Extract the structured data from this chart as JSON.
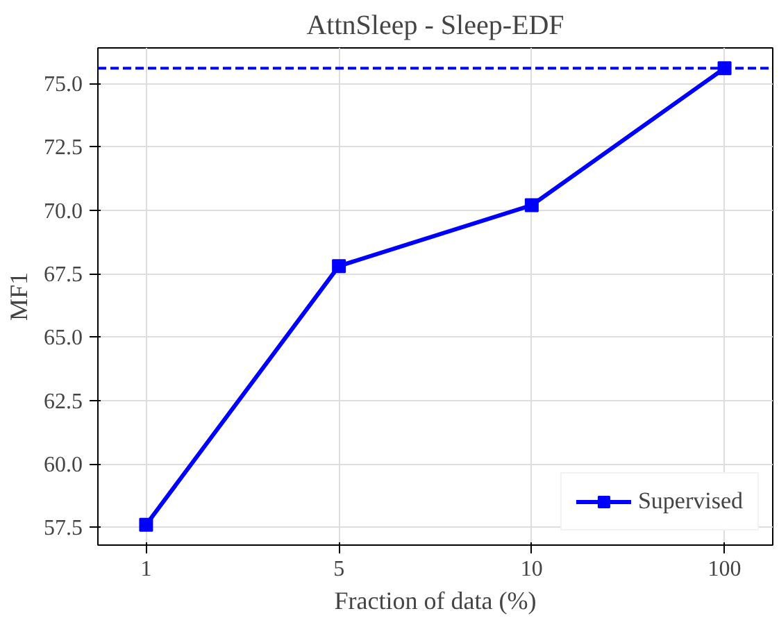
{
  "chart_data": {
    "type": "line",
    "title": "AttnSleep - Sleep-EDF",
    "xlabel": "Fraction of data (%)",
    "ylabel": "MF1",
    "categories": [
      "1",
      "5",
      "10",
      "100"
    ],
    "series": [
      {
        "name": "Supervised",
        "color": "#0000ff",
        "values": [
          57.6,
          67.8,
          70.2,
          75.6
        ]
      }
    ],
    "ylim": [
      56.8,
      76.4
    ],
    "yticks": [
      57.5,
      {
        "value": 60,
        "label": "60.0"
      },
      62.5,
      {
        "value": 65,
        "label": "65.0"
      },
      67.5,
      {
        "value": 70,
        "label": "70.0"
      },
      72.5,
      {
        "value": 75,
        "label": "75.0"
      }
    ],
    "ref_lines": [
      {
        "axis": "y",
        "value": 75.6,
        "color": "#0000ff",
        "line_style": "dashed"
      }
    ],
    "grid": true,
    "legend": "bottom right",
    "marker": "square",
    "line_style": "solid"
  }
}
